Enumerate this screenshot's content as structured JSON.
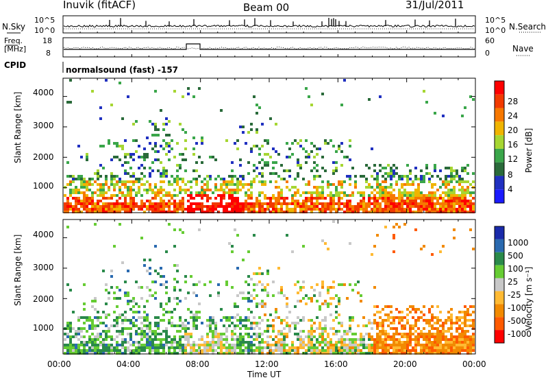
{
  "header": {
    "station": "Inuvik (fitACF)",
    "beam": "Beam 00",
    "date": "31/Jul/2011"
  },
  "top_panels": {
    "nsky_label": "N.Sky",
    "nsearch_label": "N.Search",
    "nsky_ticks": [
      "10^5",
      "10^0"
    ],
    "nsearch_ticks": [
      "10^5",
      "10^0"
    ],
    "freq_label_1": "Freq.",
    "freq_label_2": "[MHz]",
    "freq_ticks": [
      "18",
      "8"
    ],
    "nave_label": "Nave",
    "nave_ticks": [
      "60",
      "0"
    ],
    "cpid_label": "CPID",
    "cpid_text": "normalsound (fast) -157"
  },
  "colors": {
    "power": [
      "#1a1aff",
      "#2030c0",
      "#2a6a3a",
      "#3aa64a",
      "#a6d632",
      "#f0b400",
      "#f77800",
      "#f23a00",
      "#ff0000"
    ],
    "velocity": [
      "#ff0000",
      "#ff5a00",
      "#f28a00",
      "#ffba33",
      "#c8c8c8",
      "#66cc33",
      "#2a8a4a",
      "#2a6ab0",
      "#1a2aaa"
    ]
  },
  "chart_data": [
    {
      "type": "heatmap",
      "name": "power",
      "ylabel": "Slant Range [km]",
      "xlabel": "",
      "x_ticks": [
        "00:00",
        "04:00",
        "08:00",
        "12:00",
        "16:00",
        "20:00",
        "00:00"
      ],
      "xlim_hours": [
        0,
        24
      ],
      "ylim_km": [
        180,
        4600
      ],
      "y_ticks": [
        1000,
        2000,
        3000,
        4000
      ],
      "colorbar_label": "Power [dB]",
      "colorbar_ticks": [
        "28",
        "24",
        "20",
        "16",
        "12",
        "8",
        "4"
      ]
    },
    {
      "type": "heatmap",
      "name": "velocity",
      "ylabel": "Slant Range [km]",
      "xlabel": "Time UT",
      "x_ticks": [
        "00:00",
        "04:00",
        "08:00",
        "12:00",
        "16:00",
        "20:00",
        "00:00"
      ],
      "xlim_hours": [
        0,
        24
      ],
      "ylim_km": [
        180,
        4600
      ],
      "y_ticks": [
        1000,
        2000,
        3000,
        4000
      ],
      "colorbar_label": "Velocity [m s⁻¹]",
      "colorbar_ticks": [
        "1000",
        "500",
        "100",
        "25",
        "-25",
        "-100",
        "-500",
        "-1000"
      ]
    }
  ]
}
